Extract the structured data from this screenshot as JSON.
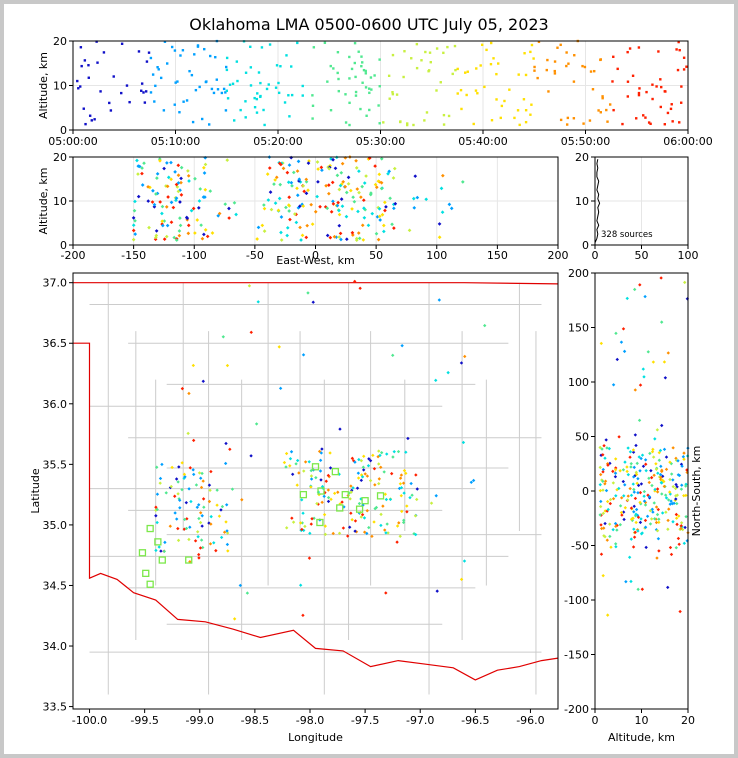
{
  "title": "Oklahoma LMA 0500-0600 UTC July 05, 2023",
  "colors": {
    "state_border": "#e00000",
    "county_lines": "#cccccc",
    "grid": "#e6e6e6",
    "stations": "#7ce84a",
    "altitude_histogram": "#000000",
    "colormap": [
      "#1010c8",
      "#00a0ff",
      "#00e0e0",
      "#50e890",
      "#c8f040",
      "#ffe000",
      "#ff9000",
      "#ff2000",
      "#a00000"
    ]
  },
  "chart_data": [
    {
      "id": "alt_time",
      "type": "scatter",
      "ylabel": "Altitude, km",
      "xlim": [
        "05:00:00",
        "06:00:00"
      ],
      "xticks": [
        "05:00:00",
        "05:10:00",
        "05:20:00",
        "05:30:00",
        "05:40:00",
        "05:50:00",
        "06:00:00"
      ],
      "ylim": [
        0,
        20
      ],
      "yticks": [
        0,
        10,
        20
      ],
      "color_by": "time",
      "grid": true
    },
    {
      "id": "alt_ew",
      "type": "scatter",
      "xlabel": "East-West, km",
      "ylabel": "Altitude, km",
      "xlim": [
        -200,
        200
      ],
      "xticks": [
        -200,
        -150,
        -100,
        -50,
        0,
        50,
        100,
        150,
        200
      ],
      "ylim": [
        0,
        20
      ],
      "yticks": [
        0,
        10,
        20
      ],
      "color_by": "time",
      "grid": true
    },
    {
      "id": "alt_hist",
      "type": "line",
      "xlim": [
        0,
        100
      ],
      "xticks": [
        0,
        50,
        100
      ],
      "ylim": [
        0,
        20
      ],
      "yticks": [
        0,
        10,
        20
      ],
      "annotation": "328 sources",
      "source_count": 328,
      "profile": [
        [
          0.5,
          0
        ],
        [
          1.5,
          2
        ],
        [
          2.5,
          3
        ],
        [
          3.5,
          2
        ],
        [
          4.5,
          4
        ],
        [
          5.5,
          2
        ],
        [
          6.5,
          3
        ],
        [
          7.5,
          4
        ],
        [
          8.5,
          3
        ],
        [
          9.5,
          5
        ],
        [
          10.5,
          3
        ],
        [
          11.5,
          4
        ],
        [
          12.5,
          2
        ],
        [
          13.5,
          3
        ],
        [
          14.5,
          4
        ],
        [
          15.5,
          2
        ],
        [
          16.5,
          2
        ],
        [
          17.5,
          3
        ],
        [
          18.5,
          2
        ],
        [
          19.5,
          3
        ]
      ],
      "grid": true
    },
    {
      "id": "plan_view",
      "type": "scatter",
      "xlabel": "Longitude",
      "ylabel": "Latitude",
      "xlim": [
        -100.15,
        -95.75
      ],
      "ylim": [
        33.48,
        37.08
      ],
      "xticks": [
        -100.0,
        -99.5,
        -99.0,
        -98.5,
        -98.0,
        -97.5,
        -97.0,
        -96.5,
        -96.0
      ],
      "yticks": [
        33.5,
        34.0,
        34.5,
        35.0,
        35.5,
        36.0,
        36.5,
        37.0
      ],
      "color_by": "time",
      "stations": [
        {
          "lon": -97.95,
          "lat": 35.48
        },
        {
          "lon": -98.06,
          "lat": 35.25
        },
        {
          "lon": -97.9,
          "lat": 35.28
        },
        {
          "lon": -97.77,
          "lat": 35.44
        },
        {
          "lon": -97.68,
          "lat": 35.25
        },
        {
          "lon": -97.73,
          "lat": 35.14
        },
        {
          "lon": -97.91,
          "lat": 35.02
        },
        {
          "lon": -97.55,
          "lat": 35.13
        },
        {
          "lon": -97.5,
          "lat": 35.2
        },
        {
          "lon": -97.36,
          "lat": 35.24
        },
        {
          "lon": -99.45,
          "lat": 34.97
        },
        {
          "lon": -99.38,
          "lat": 34.86
        },
        {
          "lon": -99.52,
          "lat": 34.77
        },
        {
          "lon": -99.34,
          "lat": 34.71
        },
        {
          "lon": -99.49,
          "lat": 34.6
        },
        {
          "lon": -99.45,
          "lat": 34.51
        },
        {
          "lon": -99.1,
          "lat": 34.71
        }
      ]
    },
    {
      "id": "ns_alt",
      "type": "scatter",
      "xlabel": "Altitude, km",
      "ylabel": "North-South, km",
      "xlim": [
        0,
        20
      ],
      "xticks": [
        0,
        10,
        20
      ],
      "ylim": [
        -200,
        200
      ],
      "yticks": [
        -200,
        -150,
        -100,
        -50,
        0,
        50,
        100,
        150,
        200
      ],
      "color_by": "time"
    }
  ]
}
